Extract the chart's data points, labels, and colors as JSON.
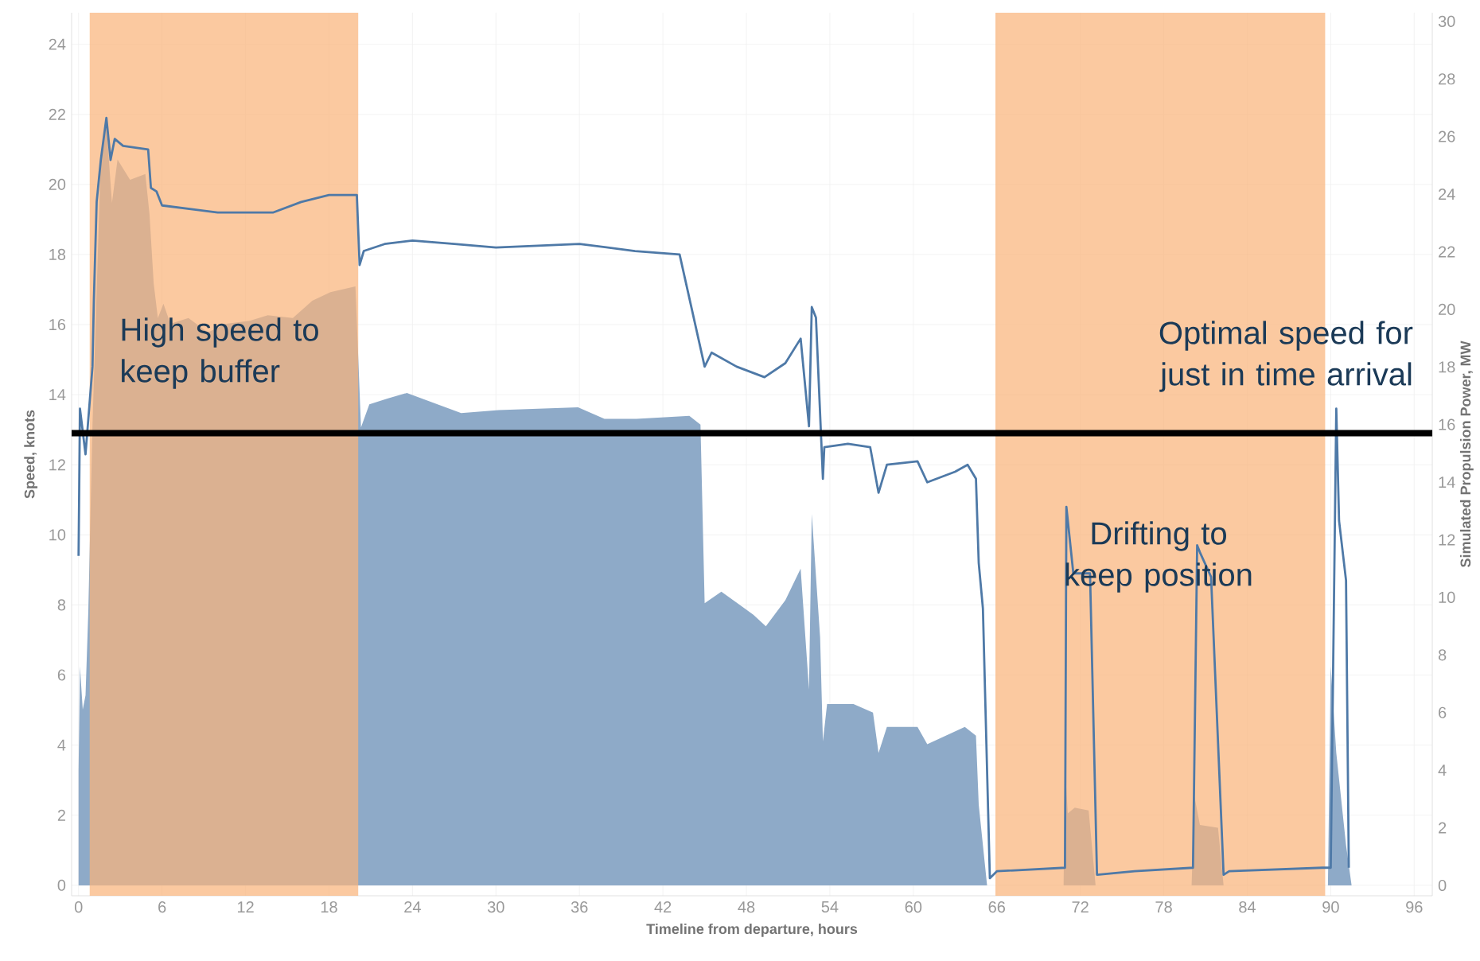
{
  "chart_data": {
    "type": "line",
    "xlabel": "Timeline from departure, hours",
    "ylabel": "Speed, knots",
    "y2label": "Simulated Propulsion Power, MW",
    "xlim": [
      -0.5,
      97.3
    ],
    "xticks": [
      0,
      6,
      12,
      18,
      24,
      30,
      36,
      42,
      48,
      54,
      60,
      66,
      72,
      78,
      84,
      90,
      96
    ],
    "ylim": [
      -0.3,
      24.9
    ],
    "yticks": [
      0,
      2,
      4,
      6,
      8,
      10,
      12,
      14,
      16,
      18,
      20,
      22,
      24
    ],
    "y2lim": [
      -0.36,
      30.3
    ],
    "y2ticks": [
      0,
      2,
      4,
      6,
      8,
      10,
      12,
      14,
      16,
      18,
      20,
      22,
      24,
      26,
      28,
      30
    ],
    "grid": true,
    "series": [
      {
        "type": "area",
        "axis": "y2",
        "color": "#8eaac8",
        "x": [
          0,
          0.1,
          0.3,
          0.5,
          0.7,
          1.0,
          1.6,
          2.0,
          2.4,
          2.8,
          3.7,
          4.8,
          5.1,
          5.4,
          5.7,
          6.1,
          6.6,
          7.9,
          9.3,
          10.6,
          12.3,
          13.6,
          15.4,
          16.8,
          18.1,
          19.9,
          20.3,
          20.9,
          22.2,
          23.6,
          25.8,
          27.5,
          30.2,
          35.9,
          37.8,
          40.1,
          43.9,
          44.7,
          45.0,
          46.2,
          48.5,
          49.4,
          50.8,
          51.9,
          52.5,
          52.7,
          53.3,
          53.5,
          53.8,
          55.7,
          57.1,
          57.5,
          58.1,
          60.3,
          61.0,
          63.7,
          64.5,
          64.7,
          65.3,
          70.8,
          70.9,
          71.1,
          71.6,
          72.6,
          73.1,
          80.0,
          80.2,
          80.6,
          81.9,
          82.3,
          89.8,
          90.0,
          90.4,
          91.1,
          91.5
        ],
        "values": [
          4.0,
          7.6,
          6.1,
          6.6,
          9.5,
          16.0,
          25.3,
          26.4,
          23.7,
          25.2,
          24.5,
          24.7,
          23.3,
          20.9,
          19.7,
          20.2,
          19.5,
          19.7,
          19.2,
          19.5,
          19.6,
          19.8,
          19.7,
          20.3,
          20.6,
          20.8,
          15.9,
          16.7,
          16.9,
          17.1,
          16.7,
          16.4,
          16.5,
          16.6,
          16.2,
          16.2,
          16.3,
          16.0,
          9.8,
          10.2,
          9.4,
          9.0,
          9.9,
          11.0,
          6.8,
          12.9,
          8.6,
          5.0,
          6.3,
          6.3,
          6.0,
          4.6,
          5.5,
          5.5,
          4.9,
          5.5,
          5.2,
          2.8,
          0,
          0,
          4.2,
          2.5,
          2.7,
          2.6,
          0,
          0,
          3.1,
          2.1,
          2.0,
          0,
          0,
          7.6,
          4.6,
          1.4,
          0
        ]
      },
      {
        "color": "#4e79a7",
        "x": [
          0,
          0.1,
          0.5,
          1.0,
          1.1,
          1.3,
          1.6,
          2.0,
          2.3,
          2.6,
          3.2,
          5.0,
          5.2,
          5.6,
          6,
          8,
          10,
          12,
          14,
          16,
          18,
          20,
          20.2,
          20.5,
          22,
          24,
          27,
          30,
          36,
          40,
          43.2,
          45.0,
          45.5,
          47.3,
          49.3,
          50.8,
          51.9,
          52.5,
          52.7,
          53.0,
          53.5,
          53.6,
          55.3,
          56.9,
          57.5,
          58.1,
          60.3,
          61.0,
          63.0,
          63.9,
          64.5,
          64.7,
          65.0,
          65.5,
          66.0,
          70.9,
          71.0,
          71.5,
          72.7,
          73.2,
          75.9,
          80.1,
          80.4,
          80.6,
          81.4,
          82.3,
          82.7,
          89.4,
          90.0,
          90.4,
          90.6,
          91.1,
          91.3
        ],
        "values": [
          9.4,
          13.6,
          12.3,
          14.8,
          16.7,
          19.5,
          20.7,
          21.9,
          20.7,
          21.3,
          21.1,
          21.0,
          19.9,
          19.8,
          19.4,
          19.3,
          19.2,
          19.2,
          19.2,
          19.5,
          19.7,
          19.7,
          17.7,
          18.1,
          18.3,
          18.4,
          18.3,
          18.2,
          18.3,
          18.1,
          18.0,
          14.8,
          15.2,
          14.8,
          14.5,
          14.9,
          15.6,
          13.1,
          16.5,
          16.2,
          11.6,
          12.5,
          12.6,
          12.5,
          11.2,
          12.0,
          12.1,
          11.5,
          11.8,
          12.0,
          11.6,
          9.2,
          7.9,
          0.2,
          0.4,
          0.5,
          10.8,
          8.9,
          8.9,
          0.3,
          0.4,
          0.5,
          9.7,
          9.5,
          8.8,
          0.3,
          0.4,
          0.5,
          0.5,
          13.6,
          10.4,
          8.7,
          0.5
        ]
      }
    ],
    "bands": [
      {
        "axis": "x",
        "from": 0.8,
        "to": 20.1,
        "color": "#f9b47c"
      },
      {
        "axis": "x",
        "from": 65.9,
        "to": 89.6,
        "color": "#f9b47c"
      }
    ],
    "ref_lines": [
      {
        "axis": "y",
        "value": 12.9,
        "color": "#000000"
      }
    ],
    "annotations": [
      "High speed to keep buffer",
      "Optimal speed for just in time arrival",
      "Drifting to keep position"
    ]
  }
}
